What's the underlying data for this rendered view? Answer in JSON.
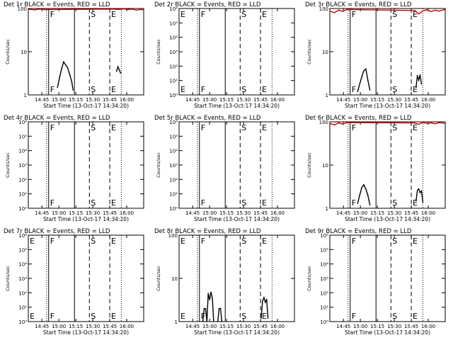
{
  "chart_data": [
    {
      "type": "line",
      "title": "Det 1r BLACK = Events, RED = LLD",
      "ylabel": "Counts/sec",
      "xlabel": "Start Time (13-Oct-17 14:34:20)",
      "yscale": "log",
      "ylim": [
        1,
        100
      ],
      "yticks": [
        {
          "v": 1,
          "t": "1"
        },
        {
          "v": 10,
          "t": "10"
        },
        {
          "v": 100,
          "t": "100"
        }
      ],
      "xlim": [
        14.55,
        16.25
      ],
      "xticks": [
        {
          "v": 14.75,
          "t": "14:45"
        },
        {
          "v": 15.0,
          "t": "15:00"
        },
        {
          "v": 15.25,
          "t": "15:15"
        },
        {
          "v": 15.5,
          "t": "15:30"
        },
        {
          "v": 15.75,
          "t": "15:45"
        },
        {
          "v": 16.0,
          "t": "16:00"
        }
      ],
      "markers": [
        {
          "x": 14.82,
          "style": "dotted"
        },
        {
          "x": 14.85,
          "style": "solid",
          "label": "F"
        },
        {
          "x": 15.23,
          "style": "solid"
        },
        {
          "x": 15.45,
          "style": "dashed",
          "label": "S"
        },
        {
          "x": 15.75,
          "style": "dashed",
          "label": "E"
        },
        {
          "x": 15.92,
          "style": "dotted"
        }
      ],
      "series": [
        {
          "color": "#cc0000",
          "x": [
            14.56,
            14.64,
            14.72,
            14.8,
            15.8,
            15.88,
            15.96,
            16.02,
            16.08,
            16.14,
            16.2,
            16.24
          ],
          "y": [
            96,
            93,
            97,
            94,
            97,
            95,
            98,
            95,
            97,
            92,
            95,
            94
          ]
        },
        {
          "color": "#000000",
          "x": [
            14.98,
            15.01,
            15.04,
            15.07,
            15.1,
            15.13,
            15.16,
            15.19,
            15.21
          ],
          "y": [
            1.5,
            2.5,
            4.0,
            5.8,
            5.0,
            4.2,
            3.0,
            2.0,
            1.3
          ]
        },
        {
          "color": "#000000",
          "x": [
            15.85,
            15.87,
            15.89,
            15.91
          ],
          "y": [
            3.5,
            4.5,
            3.8,
            3.2
          ]
        }
      ]
    },
    {
      "type": "line",
      "title": "Det 2r BLACK = Events, RED = LLD",
      "ylabel": "Counts/sec",
      "xlabel": "Start Time (13-Oct-17 14:34:20)",
      "yscale": "log",
      "ylim": [
        1,
        1000000
      ],
      "yticks": [
        {
          "v": 1,
          "t": "10⁰"
        },
        {
          "v": 10,
          "t": "10¹"
        },
        {
          "v": 100,
          "t": "10²"
        },
        {
          "v": 1000,
          "t": "10³"
        },
        {
          "v": 10000,
          "t": "10⁴"
        },
        {
          "v": 100000,
          "t": "10⁵"
        },
        {
          "v": 1000000,
          "t": "10⁶"
        }
      ],
      "xlim": [
        14.55,
        16.25
      ],
      "xticks": [
        {
          "v": 14.75,
          "t": "14:45"
        },
        {
          "v": 15.0,
          "t": "15:00"
        },
        {
          "v": 15.25,
          "t": "15:15"
        },
        {
          "v": 15.5,
          "t": "15:30"
        },
        {
          "v": 15.75,
          "t": "15:45"
        },
        {
          "v": 16.0,
          "t": "16:00"
        }
      ],
      "markers": [
        {
          "x": 14.55,
          "style": "none",
          "label": "E"
        },
        {
          "x": 14.82,
          "style": "dotted"
        },
        {
          "x": 14.85,
          "style": "solid",
          "label": "F"
        },
        {
          "x": 15.23,
          "style": "solid"
        },
        {
          "x": 15.45,
          "style": "dashed",
          "label": "S"
        },
        {
          "x": 15.75,
          "style": "dashed",
          "label": "E"
        },
        {
          "x": 15.92,
          "style": "dotted"
        }
      ],
      "series": []
    },
    {
      "type": "line",
      "title": "Det 3r BLACK = Events, RED = LLD",
      "ylabel": "Counts/sec",
      "xlabel": "Start Time (13-Oct-17 14:34:20)",
      "yscale": "log",
      "ylim": [
        1,
        100
      ],
      "yticks": [
        {
          "v": 1,
          "t": "1"
        },
        {
          "v": 10,
          "t": "10"
        },
        {
          "v": 100,
          "t": "100"
        }
      ],
      "xlim": [
        14.55,
        16.25
      ],
      "xticks": [
        {
          "v": 14.75,
          "t": "14:45"
        },
        {
          "v": 15.0,
          "t": "15:00"
        },
        {
          "v": 15.25,
          "t": "15:15"
        },
        {
          "v": 15.5,
          "t": "15:30"
        },
        {
          "v": 15.75,
          "t": "15:45"
        },
        {
          "v": 16.0,
          "t": "16:00"
        }
      ],
      "markers": [
        {
          "x": 14.82,
          "style": "dotted"
        },
        {
          "x": 14.85,
          "style": "solid",
          "label": "F"
        },
        {
          "x": 15.23,
          "style": "solid"
        },
        {
          "x": 15.45,
          "style": "dashed",
          "label": "S"
        },
        {
          "x": 15.75,
          "style": "dashed",
          "label": "E"
        },
        {
          "x": 15.92,
          "style": "dotted"
        }
      ],
      "series": [
        {
          "color": "#cc0000",
          "x": [
            14.56,
            14.62,
            14.68,
            14.74,
            14.8,
            15.8,
            15.86,
            15.92,
            15.98,
            16.04,
            16.1,
            16.16,
            16.24
          ],
          "y": [
            86,
            80,
            92,
            85,
            95,
            90,
            75,
            88,
            93,
            85,
            91,
            87,
            95
          ]
        },
        {
          "color": "#000000",
          "x": [
            14.96,
            14.99,
            15.02,
            15.05,
            15.08,
            15.11,
            15.14
          ],
          "y": [
            1.2,
            1.8,
            2.6,
            3.6,
            4.0,
            2.2,
            1.3
          ]
        },
        {
          "color": "#000000",
          "x": [
            15.82,
            15.84,
            15.86,
            15.88,
            15.9
          ],
          "y": [
            1.5,
            2.8,
            2.2,
            2.9,
            1.8
          ]
        }
      ]
    },
    {
      "type": "line",
      "title": "Det 4r BLACK = Events, RED = LLD",
      "ylabel": "Counts/sec",
      "xlabel": "Start Time (13-Oct-17 14:34:20)",
      "yscale": "log",
      "ylim": [
        1,
        1000000
      ],
      "yticks": [
        {
          "v": 1,
          "t": "10⁰"
        },
        {
          "v": 10,
          "t": "10¹"
        },
        {
          "v": 100,
          "t": "10²"
        },
        {
          "v": 1000,
          "t": "10³"
        },
        {
          "v": 10000,
          "t": "10⁴"
        },
        {
          "v": 100000,
          "t": "10⁵"
        },
        {
          "v": 1000000,
          "t": "10⁶"
        }
      ],
      "xlim": [
        14.55,
        16.25
      ],
      "xticks": [
        {
          "v": 14.75,
          "t": "14:45"
        },
        {
          "v": 15.0,
          "t": "15:00"
        },
        {
          "v": 15.25,
          "t": "15:15"
        },
        {
          "v": 15.5,
          "t": "15:30"
        },
        {
          "v": 15.75,
          "t": "15:45"
        },
        {
          "v": 16.0,
          "t": "16:00"
        }
      ],
      "markers": [
        {
          "x": 14.82,
          "style": "dotted"
        },
        {
          "x": 14.85,
          "style": "solid",
          "label": "F"
        },
        {
          "x": 15.23,
          "style": "solid"
        },
        {
          "x": 15.45,
          "style": "dashed",
          "label": "S"
        },
        {
          "x": 15.75,
          "style": "dashed",
          "label": "E"
        },
        {
          "x": 15.92,
          "style": "dotted"
        }
      ],
      "series": []
    },
    {
      "type": "line",
      "title": "Det 5r BLACK = Events, RED = LLD",
      "ylabel": "Counts/sec",
      "xlabel": "Start Time (13-Oct-17 14:34:20)",
      "yscale": "log",
      "ylim": [
        1,
        1000000
      ],
      "yticks": [
        {
          "v": 1,
          "t": "10⁰"
        },
        {
          "v": 10,
          "t": "10¹"
        },
        {
          "v": 100,
          "t": "10²"
        },
        {
          "v": 1000,
          "t": "10³"
        },
        {
          "v": 10000,
          "t": "10⁴"
        },
        {
          "v": 100000,
          "t": "10⁵"
        },
        {
          "v": 1000000,
          "t": "10⁶"
        }
      ],
      "xlim": [
        14.55,
        16.25
      ],
      "xticks": [
        {
          "v": 14.75,
          "t": "14:45"
        },
        {
          "v": 15.0,
          "t": "15:00"
        },
        {
          "v": 15.25,
          "t": "15:15"
        },
        {
          "v": 15.5,
          "t": "15:30"
        },
        {
          "v": 15.75,
          "t": "15:45"
        },
        {
          "v": 16.0,
          "t": "16:00"
        }
      ],
      "markers": [
        {
          "x": 14.82,
          "style": "dotted"
        },
        {
          "x": 14.85,
          "style": "solid",
          "label": "F"
        },
        {
          "x": 15.23,
          "style": "solid"
        },
        {
          "x": 15.45,
          "style": "dashed",
          "label": "S"
        },
        {
          "x": 15.75,
          "style": "dashed",
          "label": "E"
        },
        {
          "x": 15.92,
          "style": "dotted"
        }
      ],
      "series": []
    },
    {
      "type": "line",
      "title": "Det 6r BLACK = Events, RED = LLD",
      "ylabel": "Counts/sec",
      "xlabel": "Start Time (13-Oct-17 14:34:20)",
      "yscale": "log",
      "ylim": [
        1,
        100
      ],
      "yticks": [
        {
          "v": 1,
          "t": "1"
        },
        {
          "v": 10,
          "t": "10"
        },
        {
          "v": 100,
          "t": "100"
        }
      ],
      "xlim": [
        14.55,
        16.25
      ],
      "xticks": [
        {
          "v": 14.75,
          "t": "14:45"
        },
        {
          "v": 15.0,
          "t": "15:00"
        },
        {
          "v": 15.25,
          "t": "15:15"
        },
        {
          "v": 15.5,
          "t": "15:30"
        },
        {
          "v": 15.75,
          "t": "15:45"
        },
        {
          "v": 16.0,
          "t": "16:00"
        }
      ],
      "markers": [
        {
          "x": 14.82,
          "style": "dotted"
        },
        {
          "x": 14.85,
          "style": "solid",
          "label": "F"
        },
        {
          "x": 15.23,
          "style": "solid"
        },
        {
          "x": 15.45,
          "style": "dashed",
          "label": "S"
        },
        {
          "x": 15.75,
          "style": "dashed",
          "label": "E"
        },
        {
          "x": 15.92,
          "style": "dotted"
        }
      ],
      "series": [
        {
          "color": "#cc0000",
          "x": [
            14.56,
            14.62,
            14.68,
            14.74,
            14.8,
            15.8,
            15.86,
            15.92,
            15.98,
            16.04,
            16.1,
            16.16,
            16.24
          ],
          "y": [
            90,
            85,
            95,
            88,
            96,
            94,
            88,
            97,
            92,
            95,
            90,
            96,
            93
          ]
        },
        {
          "color": "#000000",
          "x": [
            14.96,
            14.99,
            15.02,
            15.05,
            15.08,
            15.11,
            15.14
          ],
          "y": [
            1.3,
            2.0,
            3.0,
            3.5,
            2.8,
            2.0,
            1.2
          ]
        },
        {
          "color": "#000000",
          "x": [
            15.82,
            15.84,
            15.86,
            15.88,
            15.9,
            15.92
          ],
          "y": [
            1.5,
            2.6,
            2.8,
            2.3,
            2.5,
            1.4
          ]
        }
      ]
    },
    {
      "type": "line",
      "title": "Det 7r BLACK = Events, RED = LLD",
      "ylabel": "Counts/sec",
      "xlabel": "Start Time (13-Oct-17 14:34:20)",
      "yscale": "log",
      "ylim": [
        1,
        1000000
      ],
      "yticks": [
        {
          "v": 1,
          "t": "10⁰"
        },
        {
          "v": 10,
          "t": "10¹"
        },
        {
          "v": 100,
          "t": "10²"
        },
        {
          "v": 1000,
          "t": "10³"
        },
        {
          "v": 10000,
          "t": "10⁴"
        },
        {
          "v": 100000,
          "t": "10⁵"
        },
        {
          "v": 1000000,
          "t": "10⁶"
        }
      ],
      "xlim": [
        14.55,
        16.25
      ],
      "xticks": [
        {
          "v": 14.75,
          "t": "14:45"
        },
        {
          "v": 15.0,
          "t": "15:00"
        },
        {
          "v": 15.25,
          "t": "15:15"
        },
        {
          "v": 15.5,
          "t": "15:30"
        },
        {
          "v": 15.75,
          "t": "15:45"
        },
        {
          "v": 16.0,
          "t": "16:00"
        }
      ],
      "markers": [
        {
          "x": 14.55,
          "style": "none",
          "label": "E"
        },
        {
          "x": 14.82,
          "style": "dotted"
        },
        {
          "x": 14.85,
          "style": "solid",
          "label": "F"
        },
        {
          "x": 15.23,
          "style": "solid"
        },
        {
          "x": 15.45,
          "style": "dashed",
          "label": "S"
        },
        {
          "x": 15.75,
          "style": "dashed",
          "label": "E"
        },
        {
          "x": 15.92,
          "style": "dotted"
        }
      ],
      "series": []
    },
    {
      "type": "line",
      "title": "Det 8r BLACK = Events, RED = LLD",
      "ylabel": "Counts/sec",
      "xlabel": "Start Time (13-Oct-17 14:34:20)",
      "yscale": "log",
      "ylim": [
        1,
        100
      ],
      "yticks": [
        {
          "v": 1,
          "t": "1"
        },
        {
          "v": 10,
          "t": "10"
        },
        {
          "v": 100,
          "t": "100"
        }
      ],
      "xlim": [
        14.55,
        16.25
      ],
      "xticks": [
        {
          "v": 14.75,
          "t": "14:45"
        },
        {
          "v": 15.0,
          "t": "15:00"
        },
        {
          "v": 15.25,
          "t": "15:15"
        },
        {
          "v": 15.5,
          "t": "15:30"
        },
        {
          "v": 15.75,
          "t": "15:45"
        },
        {
          "v": 16.0,
          "t": "16:00"
        }
      ],
      "markers": [
        {
          "x": 14.55,
          "style": "none",
          "label": "E"
        },
        {
          "x": 14.82,
          "style": "dotted"
        },
        {
          "x": 14.85,
          "style": "solid",
          "label": "F"
        },
        {
          "x": 15.23,
          "style": "solid"
        },
        {
          "x": 15.45,
          "style": "dashed",
          "label": "S"
        },
        {
          "x": 15.75,
          "style": "dashed",
          "label": "E"
        },
        {
          "x": 15.92,
          "style": "dotted"
        }
      ],
      "series": [
        {
          "color": "#000000",
          "x": [
            14.9,
            14.92,
            14.94,
            14.96,
            14.98,
            15.0,
            15.02,
            15.04,
            15.06
          ],
          "y": [
            1.0,
            2.0,
            2.0,
            1.0,
            4.5,
            3.2,
            4.8,
            3.5,
            1.0
          ]
        },
        {
          "color": "#000000",
          "x": [
            15.12,
            15.14,
            15.16,
            15.18
          ],
          "y": [
            1.0,
            2.0,
            2.0,
            1.0
          ]
        },
        {
          "color": "#000000",
          "x": [
            15.76,
            15.78,
            15.8,
            15.82,
            15.84,
            15.86
          ],
          "y": [
            1.2,
            3.0,
            3.6,
            2.8,
            3.3,
            1.2
          ]
        }
      ]
    },
    {
      "type": "line",
      "title": "Det 9r BLACK = Events, RED = LLD",
      "ylabel": "Counts/sec",
      "xlabel": "Start Time (13-Oct-17 14:34:20)",
      "yscale": "log",
      "ylim": [
        1,
        1000000
      ],
      "yticks": [
        {
          "v": 1,
          "t": "10⁰"
        },
        {
          "v": 10,
          "t": "10¹"
        },
        {
          "v": 100,
          "t": "10²"
        },
        {
          "v": 1000,
          "t": "10³"
        },
        {
          "v": 10000,
          "t": "10⁴"
        },
        {
          "v": 100000,
          "t": "10⁵"
        },
        {
          "v": 1000000,
          "t": "10⁶"
        }
      ],
      "xlim": [
        14.55,
        16.25
      ],
      "xticks": [
        {
          "v": 14.75,
          "t": "14:45"
        },
        {
          "v": 15.0,
          "t": "15:00"
        },
        {
          "v": 15.25,
          "t": "15:15"
        },
        {
          "v": 15.5,
          "t": "15:30"
        },
        {
          "v": 15.75,
          "t": "15:45"
        },
        {
          "v": 16.0,
          "t": "16:00"
        }
      ],
      "markers": [
        {
          "x": 14.82,
          "style": "dotted"
        },
        {
          "x": 14.85,
          "style": "solid",
          "label": "F"
        },
        {
          "x": 15.23,
          "style": "solid"
        },
        {
          "x": 15.45,
          "style": "dashed",
          "label": "S"
        },
        {
          "x": 15.75,
          "style": "dashed",
          "label": "E"
        },
        {
          "x": 15.92,
          "style": "dotted"
        }
      ],
      "series": []
    }
  ]
}
